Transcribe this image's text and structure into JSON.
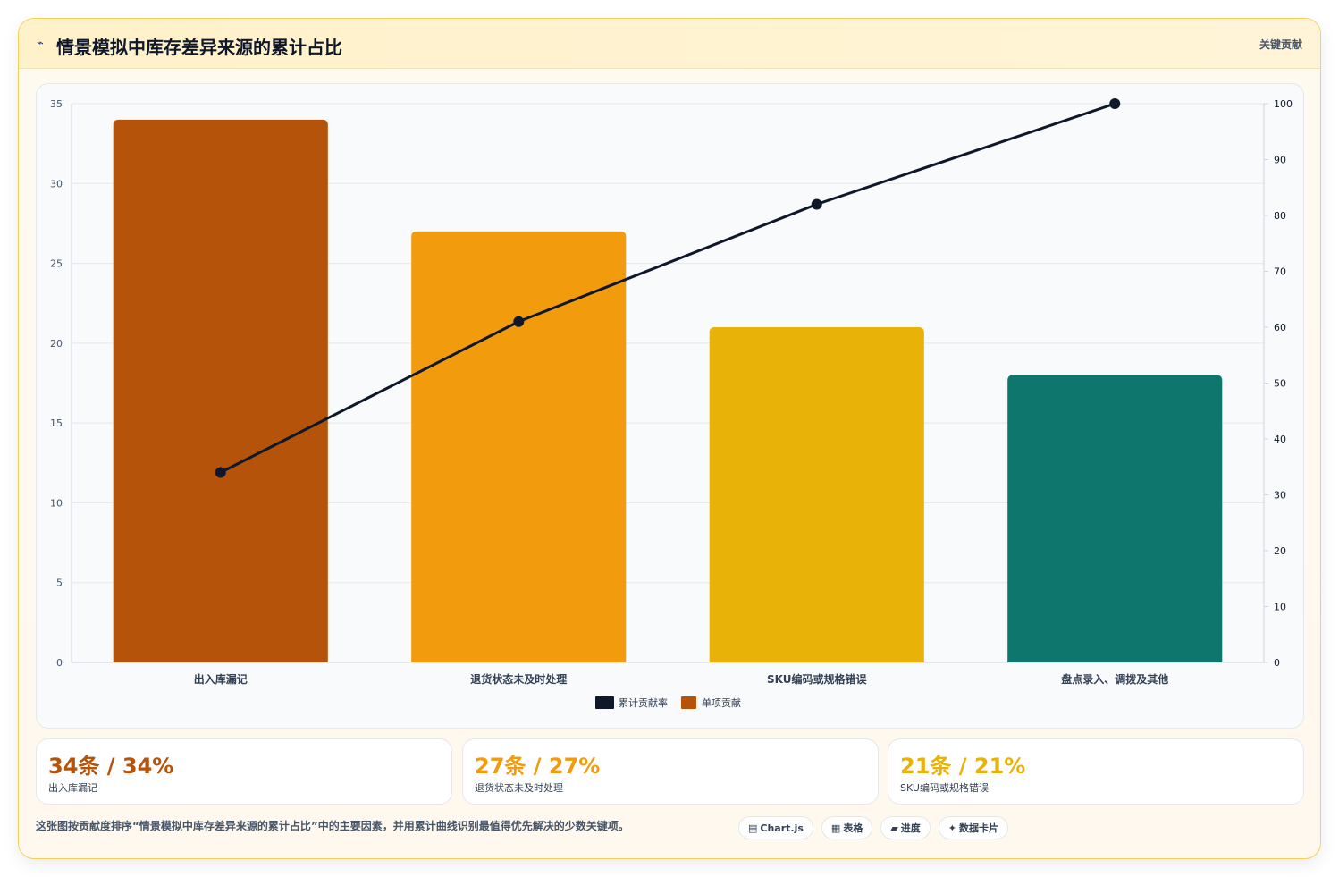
{
  "header": {
    "icon": "trend-icon",
    "title": "情景模拟中库存差异来源的累计占比",
    "tag": "关键贡献"
  },
  "colors": {
    "bar_colors": [
      "#b45309",
      "#f29b0c",
      "#e8b208",
      "#0f766e"
    ],
    "line_color": "#0f172a",
    "grid_color": "#e5e7eb"
  },
  "chart_data": {
    "type": "bar",
    "categories": [
      "出入库漏记",
      "退货状态未及时处理",
      "SKU编码或规格错误",
      "盘点录入、调拨及其他"
    ],
    "series": [
      {
        "name": "单项贡献",
        "type": "bar",
        "axis": "left",
        "values": [
          34,
          27,
          21,
          18
        ]
      },
      {
        "name": "累计贡献率",
        "type": "line",
        "axis": "right",
        "values": [
          34,
          61,
          82,
          100
        ]
      }
    ],
    "y_left": {
      "min": 0,
      "max": 35,
      "ticks": [
        "0",
        "5",
        "10",
        "15",
        "20",
        "25",
        "30",
        "35"
      ]
    },
    "y_right": {
      "min": 0,
      "max": 100,
      "ticks": [
        "0",
        "10",
        "20",
        "30",
        "40",
        "50",
        "60",
        "70",
        "80",
        "90",
        "100"
      ]
    },
    "grid": true,
    "legend_position": "bottom",
    "legend": [
      "累计贡献率",
      "单项贡献"
    ]
  },
  "stats": [
    {
      "value": "34条 / 34%",
      "label": "出入库漏记",
      "color": "#b45309"
    },
    {
      "value": "27条 / 27%",
      "label": "退货状态未及时处理",
      "color": "#f29b0c"
    },
    {
      "value": "21条 / 21%",
      "label": "SKU编码或规格错误",
      "color": "#e8b208"
    }
  ],
  "footer": {
    "note": "这张图按贡献度排序“情景模拟中库存差异来源的累计占比”中的主要因素，并用累计曲线识别最值得优先解决的少数关键项。",
    "pills": [
      {
        "icon": "chart-icon",
        "label": "Chart.js"
      },
      {
        "icon": "table-icon",
        "label": "表格"
      },
      {
        "icon": "progress-icon",
        "label": "进度"
      },
      {
        "icon": "card-icon",
        "label": "数据卡片"
      }
    ]
  }
}
